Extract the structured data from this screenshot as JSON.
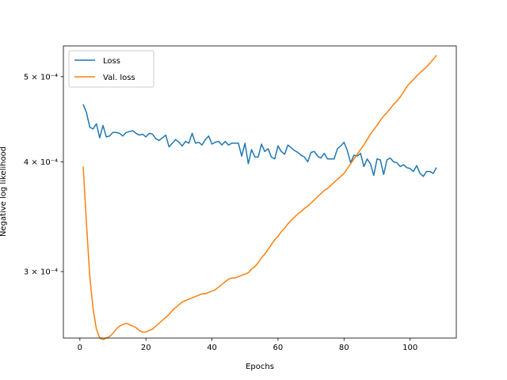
{
  "chart_data": {
    "type": "line",
    "title": "",
    "xlabel": "Epochs",
    "ylabel": "Negative log likelihood",
    "xlim": [
      -5,
      114
    ],
    "ylim": [
      0.000252,
      0.000542
    ],
    "yscale": "log",
    "grid": false,
    "legend_position": "top-left",
    "x_ticks": [
      0,
      20,
      40,
      60,
      80,
      100
    ],
    "x_tick_labels": [
      "0",
      "20",
      "40",
      "60",
      "80",
      "100"
    ],
    "y_ticks": [
      0.0003,
      0.0004,
      0.0005
    ],
    "y_tick_labels": [
      "3 × 10⁻⁴",
      "4 × 10⁻⁴",
      "5 × 10⁻⁴"
    ],
    "series": [
      {
        "name": "Loss",
        "color": "#1f77b4",
        "x": [
          1,
          2,
          3,
          4,
          5,
          6,
          7,
          8,
          9,
          10,
          11,
          12,
          13,
          14,
          15,
          16,
          17,
          18,
          19,
          20,
          21,
          22,
          23,
          24,
          25,
          26,
          27,
          28,
          29,
          30,
          31,
          32,
          33,
          34,
          35,
          36,
          37,
          38,
          39,
          40,
          41,
          42,
          43,
          44,
          45,
          46,
          47,
          48,
          49,
          50,
          51,
          52,
          53,
          54,
          55,
          56,
          57,
          58,
          59,
          60,
          61,
          62,
          63,
          64,
          65,
          66,
          67,
          68,
          69,
          70,
          71,
          72,
          73,
          74,
          75,
          76,
          77,
          78,
          79,
          80,
          81,
          82,
          83,
          84,
          85,
          86,
          87,
          88,
          89,
          90,
          91,
          92,
          93,
          94,
          95,
          96,
          97,
          98,
          99,
          100,
          101,
          102,
          103,
          104,
          105,
          106,
          107,
          108
        ],
        "values": [
          0.000465,
          0.000455,
          0.000438,
          0.000436,
          0.000442,
          0.000426,
          0.00044,
          0.000427,
          0.000428,
          0.000432,
          0.000432,
          0.000431,
          0.000428,
          0.000432,
          0.000433,
          0.000434,
          0.000431,
          0.000429,
          0.00043,
          0.000427,
          0.000431,
          0.00043,
          0.000425,
          0.000423,
          0.000426,
          0.000429,
          0.000416,
          0.00042,
          0.000424,
          0.000421,
          0.000417,
          0.000422,
          0.00042,
          0.000431,
          0.00042,
          0.000421,
          0.000418,
          0.000424,
          0.000428,
          0.000419,
          0.000421,
          0.000422,
          0.000418,
          0.000422,
          0.000418,
          0.00042,
          0.00042,
          0.00042,
          0.000406,
          0.00042,
          0.000398,
          0.000413,
          0.000405,
          0.000405,
          0.000419,
          0.000411,
          0.000414,
          0.000405,
          0.000403,
          0.000417,
          0.000411,
          0.000408,
          0.000418,
          0.000415,
          0.000412,
          0.00041,
          0.000407,
          0.000405,
          0.0004,
          0.00041,
          0.000411,
          0.000406,
          0.000404,
          0.000409,
          0.000403,
          0.000403,
          0.000403,
          0.000414,
          0.000417,
          0.000421,
          0.000412,
          0.000399,
          0.000407,
          0.000406,
          0.000409,
          0.000395,
          0.000403,
          0.000398,
          0.000386,
          0.000403,
          0.000402,
          0.000387,
          0.000402,
          0.000404,
          0.0004,
          0.000399,
          0.000395,
          0.000397,
          0.000394,
          0.000393,
          0.00039,
          0.000396,
          0.000388,
          0.000385,
          0.00039,
          0.00039,
          0.000388,
          0.000394
        ]
      },
      {
        "name": "Val. loss",
        "color": "#ff7f0e",
        "x": [
          1,
          2,
          3,
          4,
          5,
          6,
          7,
          8,
          9,
          10,
          11,
          12,
          13,
          14,
          15,
          16,
          17,
          18,
          19,
          20,
          21,
          22,
          23,
          24,
          25,
          26,
          27,
          28,
          29,
          30,
          31,
          32,
          33,
          34,
          35,
          36,
          37,
          38,
          39,
          40,
          41,
          42,
          43,
          44,
          45,
          46,
          47,
          48,
          49,
          50,
          51,
          52,
          53,
          54,
          55,
          56,
          57,
          58,
          59,
          60,
          61,
          62,
          63,
          64,
          65,
          66,
          67,
          68,
          69,
          70,
          71,
          72,
          73,
          74,
          75,
          76,
          77,
          78,
          79,
          80,
          81,
          82,
          83,
          84,
          85,
          86,
          87,
          88,
          89,
          90,
          91,
          92,
          93,
          94,
          95,
          96,
          97,
          98,
          99,
          100,
          101,
          102,
          103,
          104,
          105,
          106,
          107,
          108
        ],
        "values": [
          0.000395,
          0.00034,
          0.000296,
          0.000272,
          0.000258,
          0.000252,
          0.000251,
          0.000252,
          0.000253,
          0.000255,
          0.000258,
          0.00026,
          0.000261,
          0.000262,
          0.000261,
          0.00026,
          0.000259,
          0.000257,
          0.000256,
          0.000256,
          0.000257,
          0.000258,
          0.00026,
          0.000262,
          0.000264,
          0.000266,
          0.000268,
          0.000271,
          0.000273,
          0.000275,
          0.000277,
          0.000278,
          0.000279,
          0.00028,
          0.000281,
          0.000282,
          0.000283,
          0.000283,
          0.000284,
          0.000285,
          0.000286,
          0.000288,
          0.00029,
          0.000292,
          0.000294,
          0.000295,
          0.000295,
          0.000296,
          0.000297,
          0.000298,
          0.000299,
          0.000302,
          0.000304,
          0.000307,
          0.000311,
          0.000314,
          0.000318,
          0.000322,
          0.000326,
          0.000329,
          0.000333,
          0.000336,
          0.00034,
          0.000343,
          0.000346,
          0.000349,
          0.000351,
          0.000354,
          0.000356,
          0.000359,
          0.000362,
          0.000365,
          0.000368,
          0.000371,
          0.000373,
          0.000376,
          0.000379,
          0.000382,
          0.000385,
          0.000388,
          0.000393,
          0.000398,
          0.000403,
          0.000408,
          0.000413,
          0.000418,
          0.000424,
          0.00043,
          0.000435,
          0.00044,
          0.000446,
          0.000451,
          0.000455,
          0.00046,
          0.000465,
          0.000469,
          0.000474,
          0.00048,
          0.000487,
          0.000492,
          0.000496,
          0.000501,
          0.000505,
          0.000509,
          0.000513,
          0.000518,
          0.000523,
          0.000529
        ]
      }
    ]
  }
}
